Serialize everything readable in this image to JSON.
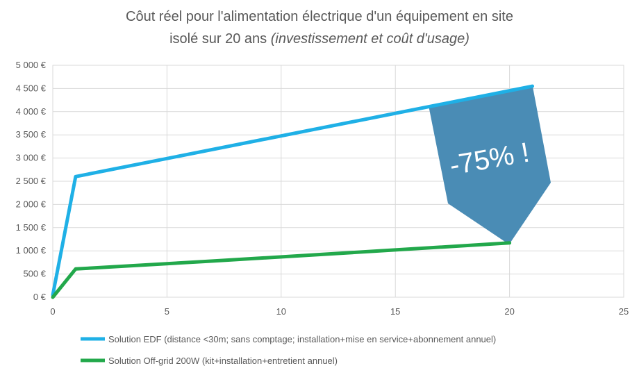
{
  "chart_data": {
    "type": "line",
    "title_line1": "Côut réel pour l'alimentation électrique d'un équipement en site",
    "title_line2_normal": "isolé sur 20 ans ",
    "title_line2_italic": "(investissement et coût d'usage)",
    "xlabel": "",
    "ylabel": "",
    "xlim": [
      0,
      25
    ],
    "ylim": [
      0,
      5000
    ],
    "x_ticks": [
      0,
      5,
      10,
      15,
      20,
      25
    ],
    "x_tick_labels": [
      "0",
      "5",
      "10",
      "15",
      "20",
      "25"
    ],
    "y_ticks": [
      0,
      500,
      1000,
      1500,
      2000,
      2500,
      3000,
      3500,
      4000,
      4500,
      5000
    ],
    "y_tick_labels": [
      "0 €",
      "500 €",
      "1 000 €",
      "1 500 €",
      "2 000 €",
      "2 500 €",
      "3 000 €",
      "3 500 €",
      "4 000 €",
      "4 500 €",
      "5 000 €"
    ],
    "grid": true,
    "legend_position": "bottom",
    "series": [
      {
        "name": "Solution EDF (distance <30m; sans comptage; installation+mise en service+abonnement annuel)",
        "color": "#1FB0E6",
        "points": [
          [
            0,
            50
          ],
          [
            1,
            2600
          ],
          [
            21,
            4550
          ]
        ]
      },
      {
        "name": "Solution Off-grid 200W (kit+installation+entretient annuel)",
        "color": "#22A84B",
        "points": [
          [
            0,
            0
          ],
          [
            1,
            610
          ],
          [
            7,
            780
          ],
          [
            14,
            990
          ],
          [
            20,
            1170
          ]
        ]
      }
    ],
    "annotation": {
      "text": "-75% !",
      "color": "#4A8CB5"
    }
  }
}
